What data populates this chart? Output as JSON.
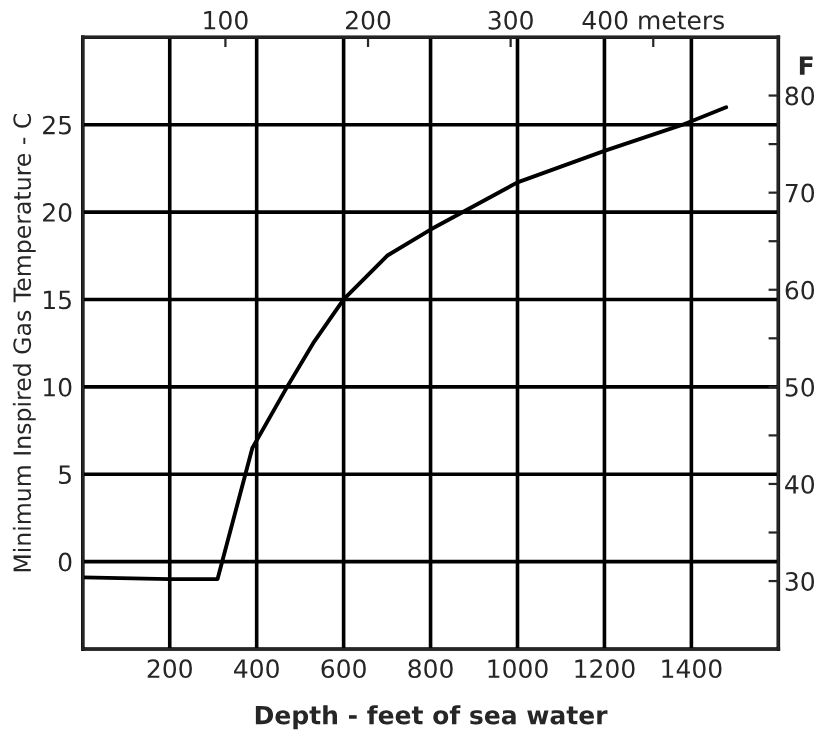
{
  "chart_data": {
    "type": "line",
    "xlabel": "Depth - feet of sea water",
    "ylabel": "Minimum Inspired Gas Temperature - C",
    "y2label": "F",
    "series": [
      {
        "color": "#000000",
        "x": [
          0,
          200,
          310,
          390,
          470,
          530,
          600,
          700,
          800,
          1000,
          1200,
          1380,
          1480
        ],
        "values": [
          -0.9,
          -1.0,
          -1.0,
          6.5,
          10,
          12.5,
          15,
          17.5,
          19,
          21.7,
          23.5,
          25,
          26
        ]
      }
    ],
    "xlim": [
      0,
      1600
    ],
    "xticks": [
      200,
      400,
      600,
      800,
      1000,
      1200,
      1400
    ],
    "ylim": [
      -5,
      30
    ],
    "yticks": [
      0,
      5,
      10,
      15,
      20,
      25
    ],
    "x2lim": [
      0,
      487.7
    ],
    "x2ticks": [
      100,
      200,
      300,
      {
        "value": 400,
        "label": "400 meters"
      }
    ],
    "y2lim": [
      23,
      86
    ],
    "y2ticks": [
      30,
      {
        "value": 35,
        "label": null
      },
      40,
      {
        "value": 45,
        "label": null
      },
      50,
      {
        "value": 55,
        "label": null
      },
      60,
      {
        "value": 65,
        "label": null
      },
      70,
      {
        "value": 75,
        "label": null
      },
      80
    ],
    "grid": true,
    "line_style": "solid"
  }
}
